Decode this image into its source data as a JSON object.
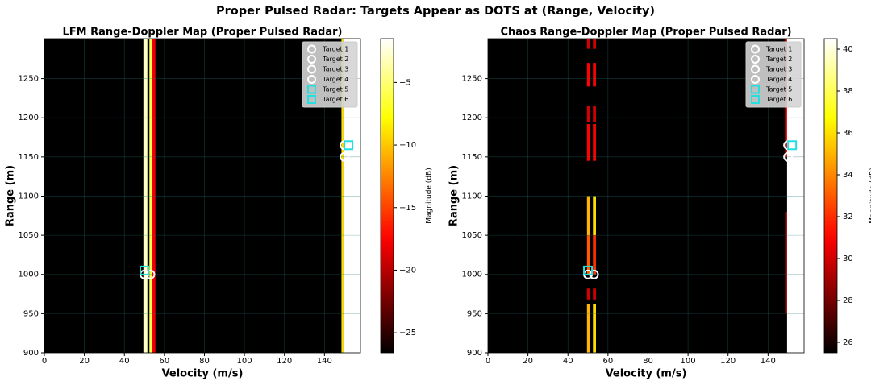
{
  "title": "Proper Pulsed Radar: Targets Appear as DOTS at (Range, Velocity)",
  "chart_data": [
    {
      "type": "heatmap",
      "title": "LFM Range-Doppler Map (Proper Pulsed Radar)",
      "x_label": "Velocity (m/s)",
      "y_label": "Range (m)",
      "xlim": [
        0,
        158
      ],
      "ylim": [
        900,
        1301
      ],
      "xticks": [
        0,
        20,
        40,
        60,
        80,
        100,
        120,
        140
      ],
      "yticks": [
        900,
        950,
        1000,
        1050,
        1100,
        1150,
        1200,
        1250
      ],
      "grid": true,
      "legend": "upper right",
      "colorbar_label": "Magnitude (dB)",
      "clim": [
        -26.6,
        -1.5
      ],
      "cticks": [
        {
          "value": -5,
          "label": "−5"
        },
        {
          "value": -10,
          "label": "−10"
        },
        {
          "value": -15,
          "label": "−15"
        },
        {
          "value": -20,
          "label": "−20"
        },
        {
          "value": -25,
          "label": "−25"
        }
      ],
      "cells": [
        {
          "x0": 49.5,
          "x1": 51.5,
          "y0": 900,
          "y1": 1301,
          "value": -3
        },
        {
          "x0": 52.5,
          "x1": 54,
          "y0": 900,
          "y1": 1301,
          "value": -6
        },
        {
          "x0": 54,
          "x1": 55.5,
          "y0": 900,
          "y1": 1301,
          "value": -18
        },
        {
          "x0": 148.5,
          "x1": 149.5,
          "y0": 900,
          "y1": 1301,
          "value": -9
        },
        {
          "x0": 149.5,
          "x1": 158,
          "y0": 900,
          "y1": 1301,
          "value": -1.5
        }
      ],
      "series": [
        {
          "name": "Target 1",
          "color": "#ffffff",
          "marker": "circle",
          "x": [
            50
          ],
          "values": [
            1000
          ]
        },
        {
          "name": "Target 2",
          "color": "#ffffff",
          "marker": "circle",
          "x": [
            53
          ],
          "values": [
            1000
          ]
        },
        {
          "name": "Target 3",
          "color": "#ffffff",
          "marker": "circle",
          "x": [
            150
          ],
          "values": [
            1150
          ]
        },
        {
          "name": "Target 4",
          "color": "#ffffff",
          "marker": "circle",
          "x": [
            150
          ],
          "values": [
            1165
          ]
        },
        {
          "name": "Target 5",
          "color": "#22e0e0",
          "marker": "square",
          "x": [
            50
          ],
          "values": [
            1005
          ]
        },
        {
          "name": "Target 6",
          "color": "#22e0e0",
          "marker": "square",
          "x": [
            152
          ],
          "values": [
            1165
          ]
        }
      ]
    },
    {
      "type": "heatmap",
      "title": "Chaos Range-Doppler Map (Proper Pulsed Radar)",
      "x_label": "Velocity (m/s)",
      "y_label": "Range (m)",
      "xlim": [
        0,
        158
      ],
      "ylim": [
        900,
        1301
      ],
      "xticks": [
        0,
        20,
        40,
        60,
        80,
        100,
        120,
        140
      ],
      "yticks": [
        900,
        950,
        1000,
        1050,
        1100,
        1150,
        1200,
        1250
      ],
      "grid": true,
      "legend": "upper right",
      "colorbar_label": "Magnitude (dB)",
      "clim": [
        25.5,
        40.5
      ],
      "cticks": [
        26,
        28,
        30,
        32,
        34,
        36,
        38,
        40
      ],
      "cells": [
        {
          "x0": 49.5,
          "x1": 51,
          "y0": 1288,
          "y1": 1301,
          "value": 30
        },
        {
          "x0": 52.5,
          "x1": 54,
          "y0": 1288,
          "y1": 1301,
          "value": 30
        },
        {
          "x0": 49.5,
          "x1": 51,
          "y0": 1240,
          "y1": 1270,
          "value": 31
        },
        {
          "x0": 52.5,
          "x1": 54,
          "y0": 1240,
          "y1": 1270,
          "value": 31
        },
        {
          "x0": 49.5,
          "x1": 51,
          "y0": 1195,
          "y1": 1215,
          "value": 30
        },
        {
          "x0": 52.5,
          "x1": 54,
          "y0": 1195,
          "y1": 1215,
          "value": 30
        },
        {
          "x0": 49.5,
          "x1": 51,
          "y0": 1145,
          "y1": 1192,
          "value": 31
        },
        {
          "x0": 52.5,
          "x1": 54,
          "y0": 1145,
          "y1": 1192,
          "value": 31
        },
        {
          "x0": 49.5,
          "x1": 51,
          "y0": 1050,
          "y1": 1100,
          "value": 35
        },
        {
          "x0": 52.5,
          "x1": 54,
          "y0": 1050,
          "y1": 1100,
          "value": 36
        },
        {
          "x0": 49.5,
          "x1": 51,
          "y0": 1000,
          "y1": 1050,
          "value": 33
        },
        {
          "x0": 52.5,
          "x1": 54,
          "y0": 1000,
          "y1": 1050,
          "value": 32
        },
        {
          "x0": 49.5,
          "x1": 51,
          "y0": 968,
          "y1": 982,
          "value": 30
        },
        {
          "x0": 52.5,
          "x1": 54,
          "y0": 968,
          "y1": 982,
          "value": 30
        },
        {
          "x0": 49.5,
          "x1": 51,
          "y0": 900,
          "y1": 962,
          "value": 35
        },
        {
          "x0": 52.5,
          "x1": 54,
          "y0": 900,
          "y1": 962,
          "value": 36
        },
        {
          "x0": 148.5,
          "x1": 149.5,
          "y0": 1150,
          "y1": 1301,
          "value": 31
        },
        {
          "x0": 148.5,
          "x1": 149.5,
          "y0": 950,
          "y1": 1080,
          "value": 29
        },
        {
          "x0": 149.5,
          "x1": 158,
          "y0": 900,
          "y1": 1301,
          "value": 40.5
        }
      ],
      "series": [
        {
          "name": "Target 1",
          "color": "#ffffff",
          "marker": "circle",
          "x": [
            50
          ],
          "values": [
            1000
          ]
        },
        {
          "name": "Target 2",
          "color": "#ffffff",
          "marker": "circle",
          "x": [
            53
          ],
          "values": [
            1000
          ]
        },
        {
          "name": "Target 3",
          "color": "#ffffff",
          "marker": "circle",
          "x": [
            150
          ],
          "values": [
            1150
          ]
        },
        {
          "name": "Target 4",
          "color": "#ffffff",
          "marker": "circle",
          "x": [
            150
          ],
          "values": [
            1165
          ]
        },
        {
          "name": "Target 5",
          "color": "#22e0e0",
          "marker": "square",
          "x": [
            50
          ],
          "values": [
            1005
          ]
        },
        {
          "name": "Target 6",
          "color": "#22e0e0",
          "marker": "square",
          "x": [
            152
          ],
          "values": [
            1165
          ]
        }
      ]
    }
  ]
}
